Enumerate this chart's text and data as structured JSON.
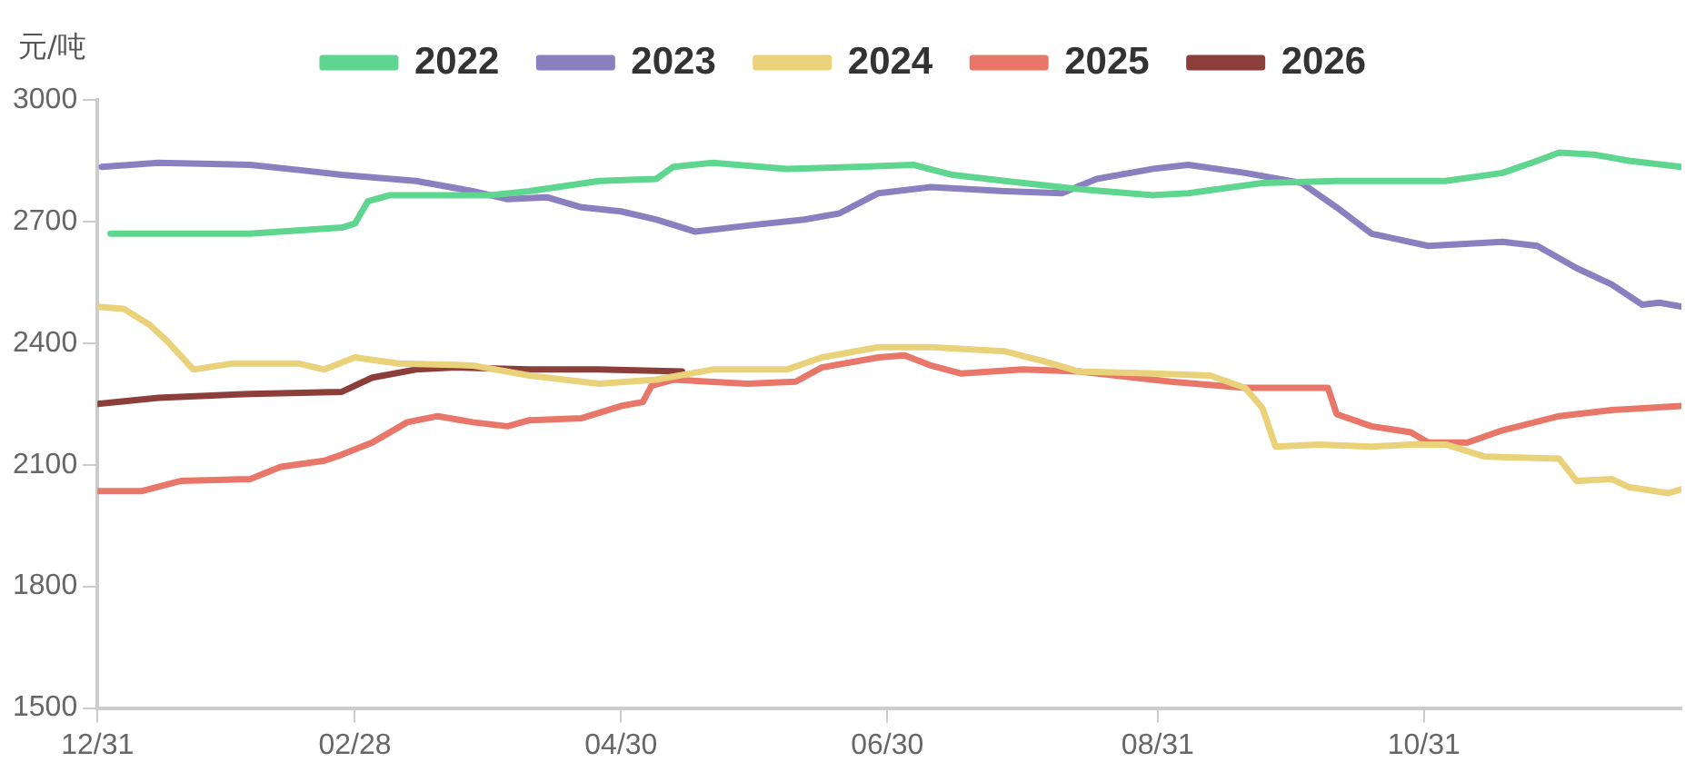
{
  "chart_data": {
    "type": "line",
    "ylabel": "元/吨",
    "legend": "top",
    "grid": false,
    "marker": "none",
    "line_style": "solid",
    "xlim": [
      "2025-12-31",
      "2026-12-29"
    ],
    "xticks": [
      {
        "value": "2025-12-31",
        "label": "12/31"
      },
      {
        "value": "2026-02-28",
        "label": "02/28"
      },
      {
        "value": "2026-04-30",
        "label": "04/30"
      },
      {
        "value": "2026-06-30",
        "label": "06/30"
      },
      {
        "value": "2026-08-31",
        "label": "08/31"
      },
      {
        "value": "2026-10-31",
        "label": "10/31"
      }
    ],
    "ylim": [
      1500,
      3000
    ],
    "yticks": [
      1500,
      1800,
      2100,
      2400,
      2700,
      3000
    ],
    "series": [
      {
        "name": "2022",
        "color": "#5fd68f",
        "x": [
          "2026-01-03",
          "2026-02-04",
          "2026-02-25",
          "2026-02-28",
          "2026-03-03",
          "2026-03-08",
          "2026-03-31",
          "2026-04-09",
          "2026-04-25",
          "2026-05-08",
          "2026-05-12",
          "2026-05-21",
          "2026-06-07",
          "2026-06-23",
          "2026-07-06",
          "2026-07-15",
          "2026-07-27",
          "2026-08-13",
          "2026-08-30",
          "2026-09-07",
          "2026-09-24",
          "2026-10-11",
          "2026-11-05",
          "2026-11-18",
          "2026-11-26",
          "2026-12-01",
          "2026-12-09",
          "2026-12-17",
          "2026-12-29"
        ],
        "values": [
          2670,
          2670,
          2685,
          2695,
          2750,
          2765,
          2765,
          2775,
          2800,
          2805,
          2835,
          2845,
          2830,
          2835,
          2840,
          2815,
          2800,
          2780,
          2765,
          2770,
          2795,
          2800,
          2800,
          2820,
          2850,
          2870,
          2865,
          2850,
          2835
        ]
      },
      {
        "name": "2023",
        "color": "#8a80c0",
        "x": [
          "2026-01-01",
          "2026-01-14",
          "2026-02-04",
          "2026-02-17",
          "2026-02-25",
          "2026-03-14",
          "2026-03-27",
          "2026-04-04",
          "2026-04-13",
          "2026-04-21",
          "2026-04-30",
          "2026-05-08",
          "2026-05-17",
          "2026-05-29",
          "2026-06-11",
          "2026-06-19",
          "2026-06-28",
          "2026-07-10",
          "2026-07-27",
          "2026-08-09",
          "2026-08-17",
          "2026-08-30",
          "2026-09-07",
          "2026-09-20",
          "2026-10-03",
          "2026-10-11",
          "2026-10-19",
          "2026-11-01",
          "2026-11-18",
          "2026-11-26",
          "2026-12-05",
          "2026-12-13",
          "2026-12-20",
          "2026-12-24",
          "2026-12-29"
        ],
        "values": [
          2835,
          2845,
          2840,
          2825,
          2815,
          2800,
          2775,
          2755,
          2760,
          2735,
          2725,
          2705,
          2675,
          2690,
          2705,
          2720,
          2770,
          2785,
          2775,
          2770,
          2805,
          2830,
          2840,
          2820,
          2795,
          2735,
          2670,
          2640,
          2650,
          2640,
          2585,
          2545,
          2495,
          2500,
          2490
        ]
      },
      {
        "name": "2024",
        "color": "#ead27a",
        "x": [
          "2025-12-31",
          "2026-01-06",
          "2026-01-12",
          "2026-01-16",
          "2026-01-22",
          "2026-01-31",
          "2026-02-15",
          "2026-02-21",
          "2026-02-28",
          "2026-03-10",
          "2026-03-27",
          "2026-04-09",
          "2026-04-25",
          "2026-05-08",
          "2026-05-21",
          "2026-06-07",
          "2026-06-15",
          "2026-06-28",
          "2026-07-10",
          "2026-07-27",
          "2026-08-05",
          "2026-08-13",
          "2026-08-30",
          "2026-09-12",
          "2026-09-20",
          "2026-09-24",
          "2026-09-27",
          "2026-10-07",
          "2026-10-19",
          "2026-10-28",
          "2026-11-05",
          "2026-11-14",
          "2026-12-01",
          "2026-12-05",
          "2026-12-13",
          "2026-12-17",
          "2026-12-26",
          "2026-12-29"
        ],
        "values": [
          2490,
          2485,
          2445,
          2405,
          2335,
          2350,
          2350,
          2335,
          2365,
          2350,
          2345,
          2320,
          2300,
          2310,
          2335,
          2335,
          2365,
          2390,
          2390,
          2380,
          2355,
          2330,
          2325,
          2320,
          2290,
          2240,
          2145,
          2150,
          2145,
          2150,
          2150,
          2120,
          2115,
          2060,
          2065,
          2045,
          2030,
          2040
        ]
      },
      {
        "name": "2025",
        "color": "#e8776a",
        "x": [
          "2025-12-31",
          "2026-01-10",
          "2026-01-19",
          "2026-02-04",
          "2026-02-11",
          "2026-02-21",
          "2026-02-25",
          "2026-03-04",
          "2026-03-12",
          "2026-03-19",
          "2026-03-27",
          "2026-04-04",
          "2026-04-09",
          "2026-04-21",
          "2026-04-30",
          "2026-05-05",
          "2026-05-07",
          "2026-05-12",
          "2026-05-29",
          "2026-06-09",
          "2026-06-15",
          "2026-06-28",
          "2026-07-04",
          "2026-07-10",
          "2026-07-17",
          "2026-07-31",
          "2026-08-13",
          "2026-09-03",
          "2026-09-20",
          "2026-10-09",
          "2026-10-11",
          "2026-10-19",
          "2026-10-28",
          "2026-11-01",
          "2026-11-10",
          "2026-11-18",
          "2026-12-01",
          "2026-12-13",
          "2026-12-29"
        ],
        "values": [
          2035,
          2035,
          2060,
          2065,
          2095,
          2110,
          2125,
          2155,
          2205,
          2220,
          2205,
          2195,
          2210,
          2215,
          2245,
          2255,
          2295,
          2310,
          2300,
          2305,
          2340,
          2365,
          2370,
          2345,
          2325,
          2335,
          2330,
          2305,
          2290,
          2290,
          2225,
          2195,
          2180,
          2155,
          2155,
          2185,
          2220,
          2235,
          2245
        ]
      },
      {
        "name": "2026",
        "color": "#8c3f3a",
        "x": [
          "2025-12-31",
          "2026-01-14",
          "2026-02-04",
          "2026-02-25",
          "2026-03-04",
          "2026-03-14",
          "2026-03-23",
          "2026-04-09",
          "2026-04-25",
          "2026-05-14"
        ],
        "values": [
          2250,
          2265,
          2275,
          2280,
          2315,
          2335,
          2340,
          2335,
          2335,
          2330
        ]
      }
    ]
  }
}
